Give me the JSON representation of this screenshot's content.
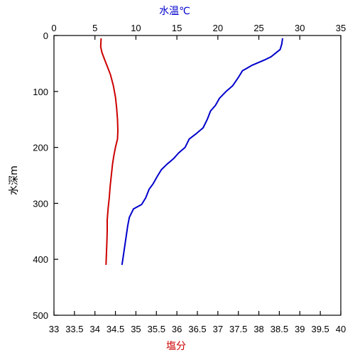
{
  "chart_data": {
    "type": "line",
    "title": "",
    "y": {
      "label": "水深m",
      "range": [
        0,
        500
      ],
      "ticks": [
        0,
        100,
        200,
        300,
        400,
        500
      ],
      "inverted": true
    },
    "x_top": {
      "label": "水温℃",
      "label_color": "#0000cc",
      "range": [
        0,
        35
      ],
      "ticks": [
        0,
        5,
        10,
        15,
        20,
        25,
        30,
        35
      ]
    },
    "x_bottom": {
      "label": "塩分",
      "label_color": "#cc0000",
      "range": [
        33,
        40
      ],
      "ticks": [
        33,
        33.5,
        34,
        34.5,
        35,
        35.5,
        36,
        36.5,
        37,
        37.5,
        38,
        38.5,
        39,
        39.5,
        40
      ],
      "tick_labels": [
        "33",
        "33.5",
        "34",
        "34.5",
        "35",
        "35.5",
        "36",
        "36.5",
        "37",
        "37.5",
        "38",
        "38.5",
        "39",
        "39.5",
        "40"
      ]
    },
    "grid": false,
    "series": [
      {
        "axis": "x_top",
        "color": "#0000cc",
        "points": [
          [
            27.9,
            5
          ],
          [
            27.8,
            15
          ],
          [
            27.6,
            25
          ],
          [
            27.0,
            32
          ],
          [
            26.5,
            38
          ],
          [
            25.8,
            43
          ],
          [
            25.0,
            48
          ],
          [
            24.2,
            53
          ],
          [
            23.6,
            58
          ],
          [
            23.0,
            63
          ],
          [
            22.5,
            75
          ],
          [
            21.8,
            90
          ],
          [
            21.0,
            100
          ],
          [
            20.2,
            112
          ],
          [
            19.7,
            125
          ],
          [
            19.1,
            135
          ],
          [
            18.7,
            150
          ],
          [
            18.2,
            165
          ],
          [
            17.4,
            175
          ],
          [
            16.5,
            185
          ],
          [
            16.0,
            200
          ],
          [
            15.2,
            210
          ],
          [
            14.6,
            220
          ],
          [
            13.8,
            230
          ],
          [
            13.1,
            240
          ],
          [
            12.6,
            252
          ],
          [
            12.1,
            265
          ],
          [
            11.6,
            275
          ],
          [
            11.2,
            290
          ],
          [
            10.7,
            302
          ],
          [
            9.7,
            310
          ],
          [
            9.2,
            325
          ],
          [
            9.0,
            340
          ],
          [
            8.8,
            360
          ],
          [
            8.6,
            380
          ],
          [
            8.4,
            400
          ],
          [
            8.3,
            410
          ]
        ]
      },
      {
        "axis": "x_bottom",
        "color": "#cc0000",
        "points": [
          [
            34.15,
            5
          ],
          [
            34.14,
            20
          ],
          [
            34.17,
            30
          ],
          [
            34.22,
            40
          ],
          [
            34.3,
            55
          ],
          [
            34.38,
            70
          ],
          [
            34.45,
            90
          ],
          [
            34.5,
            110
          ],
          [
            34.53,
            130
          ],
          [
            34.55,
            150
          ],
          [
            34.56,
            170
          ],
          [
            34.55,
            185
          ],
          [
            34.5,
            200
          ],
          [
            34.46,
            215
          ],
          [
            34.43,
            230
          ],
          [
            34.4,
            250
          ],
          [
            34.37,
            270
          ],
          [
            34.35,
            290
          ],
          [
            34.32,
            310
          ],
          [
            34.3,
            330
          ],
          [
            34.3,
            350
          ],
          [
            34.29,
            370
          ],
          [
            34.28,
            390
          ],
          [
            34.27,
            410
          ]
        ]
      }
    ]
  }
}
